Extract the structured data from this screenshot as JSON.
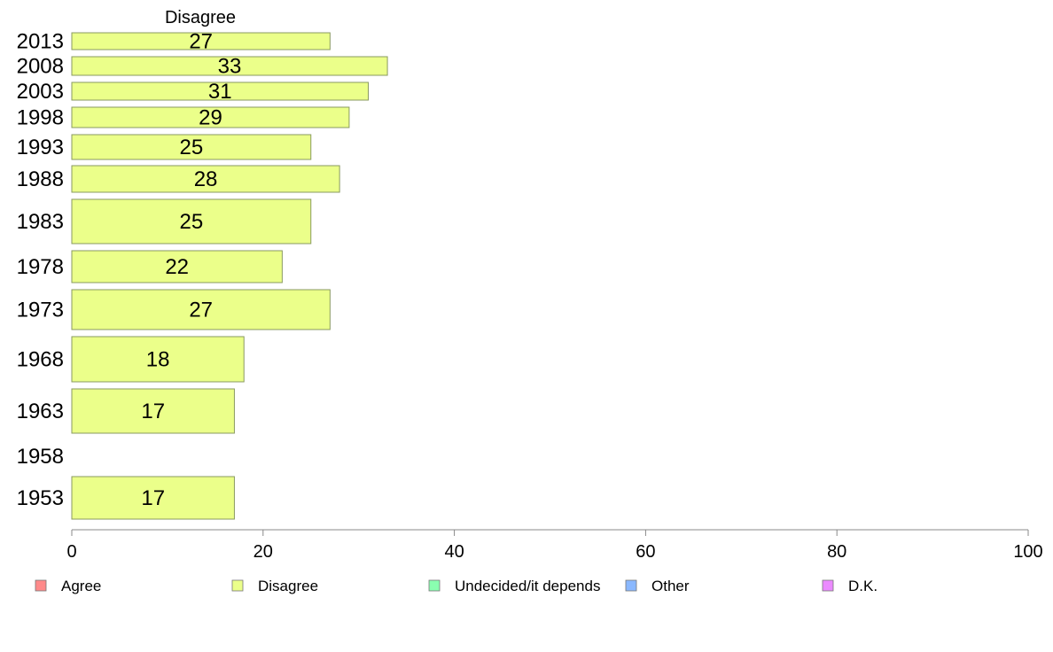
{
  "chart_data": {
    "type": "bar",
    "orientation": "horizontal",
    "series_header": "Disagree",
    "categories": [
      "2013",
      "2008",
      "2003",
      "1998",
      "1993",
      "1988",
      "1983",
      "1978",
      "1973",
      "1968",
      "1963",
      "1958",
      "1953"
    ],
    "values": [
      27,
      33,
      31,
      29,
      25,
      28,
      25,
      22,
      27,
      18,
      17,
      null,
      17
    ],
    "value_labels": [
      "27",
      "33",
      "31",
      "29",
      "25",
      "28",
      "25",
      "22",
      "27",
      "18",
      "17",
      "",
      "17"
    ],
    "xlim": [
      0,
      100
    ],
    "xticks": [
      0,
      20,
      40,
      60,
      80,
      100
    ],
    "bar_color": "#ebff8a",
    "bar_stroke": "#8a9a60",
    "axis_color": "#888888",
    "legend": {
      "placement": "bottom",
      "items": [
        {
          "label": "Agree",
          "color": "#ff8a8a"
        },
        {
          "label": "Disagree",
          "color": "#ebff8a"
        },
        {
          "label": "Undecided/it depends",
          "color": "#8affb0"
        },
        {
          "label": "Other",
          "color": "#8ab8ff"
        },
        {
          "label": "D.K.",
          "color": "#eb8aff"
        }
      ]
    }
  }
}
